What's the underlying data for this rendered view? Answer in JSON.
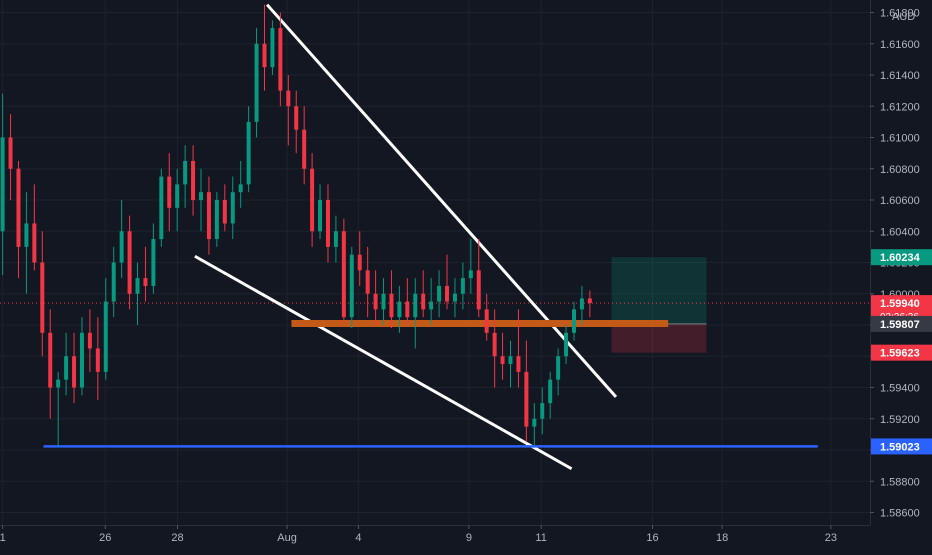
{
  "chart_data": {
    "type": "candlestick",
    "currency_label": "AUD",
    "price_labels": [
      "1.61800",
      "1.61600",
      "1.61400",
      "1.61200",
      "1.61000",
      "1.60800",
      "1.60600",
      "1.60400",
      "1.60200",
      "1.60000",
      "1.59800",
      "1.59600",
      "1.59400",
      "1.59200",
      "1.59000",
      "1.58800",
      "1.58600"
    ],
    "date_labels": [
      "1",
      "26",
      "28",
      "Aug",
      "4",
      "9",
      "11",
      "16",
      "18",
      "23"
    ],
    "ylim": [
      1.5852,
      1.6188
    ],
    "badges": [
      {
        "text": "1.60234",
        "color": "#089981"
      },
      {
        "text": "1.59940",
        "sub": "03:36:36",
        "color": "#f23645"
      },
      {
        "text": "1.59807",
        "color": "#363a45"
      },
      {
        "text": "1.59623",
        "color": "#f23645"
      },
      {
        "text": "1.59023",
        "color": "#2962ff"
      }
    ],
    "candles": [
      [
        1.604,
        1.6128,
        1.6012,
        1.61
      ],
      [
        1.61,
        1.6115,
        1.606,
        1.608
      ],
      [
        1.608,
        1.6085,
        1.601,
        1.603
      ],
      [
        1.603,
        1.6065,
        1.6,
        1.6045
      ],
      [
        1.6045,
        1.607,
        1.6015,
        1.602
      ],
      [
        1.602,
        1.604,
        1.596,
        1.5975
      ],
      [
        1.5975,
        1.599,
        1.592,
        1.594
      ],
      [
        1.594,
        1.595,
        1.5902,
        1.5945
      ],
      [
        1.5945,
        1.5975,
        1.5935,
        1.596
      ],
      [
        1.596,
        1.5975,
        1.593,
        1.594
      ],
      [
        1.594,
        1.5985,
        1.5935,
        1.5975
      ],
      [
        1.5975,
        1.599,
        1.595,
        1.5965
      ],
      [
        1.5965,
        1.5985,
        1.5932,
        1.595
      ],
      [
        1.595,
        1.601,
        1.5945,
        1.5995
      ],
      [
        1.5995,
        1.603,
        1.5985,
        1.602
      ],
      [
        1.602,
        1.606,
        1.601,
        1.604
      ],
      [
        1.604,
        1.605,
        1.599,
        1.6
      ],
      [
        1.6,
        1.602,
        1.598,
        1.601
      ],
      [
        1.601,
        1.603,
        1.5995,
        1.6005
      ],
      [
        1.6005,
        1.6045,
        1.6,
        1.6035
      ],
      [
        1.6035,
        1.608,
        1.603,
        1.6075
      ],
      [
        1.6075,
        1.609,
        1.604,
        1.6055
      ],
      [
        1.6055,
        1.608,
        1.604,
        1.607
      ],
      [
        1.607,
        1.6095,
        1.6055,
        1.6085
      ],
      [
        1.6085,
        1.6095,
        1.605,
        1.606
      ],
      [
        1.606,
        1.608,
        1.604,
        1.6065
      ],
      [
        1.6065,
        1.6075,
        1.6025,
        1.6035
      ],
      [
        1.6035,
        1.6065,
        1.603,
        1.606
      ],
      [
        1.606,
        1.607,
        1.604,
        1.6045
      ],
      [
        1.6045,
        1.6075,
        1.6035,
        1.6065
      ],
      [
        1.6065,
        1.6085,
        1.6055,
        1.607
      ],
      [
        1.607,
        1.612,
        1.6065,
        1.611
      ],
      [
        1.611,
        1.617,
        1.61,
        1.616
      ],
      [
        1.616,
        1.6185,
        1.613,
        1.6145
      ],
      [
        1.6145,
        1.6175,
        1.614,
        1.617
      ],
      [
        1.617,
        1.618,
        1.612,
        1.613
      ],
      [
        1.613,
        1.614,
        1.6095,
        1.612
      ],
      [
        1.612,
        1.613,
        1.609,
        1.6105
      ],
      [
        1.6105,
        1.612,
        1.607,
        1.608
      ],
      [
        1.608,
        1.609,
        1.603,
        1.604
      ],
      [
        1.604,
        1.607,
        1.6035,
        1.606
      ],
      [
        1.606,
        1.607,
        1.602,
        1.603
      ],
      [
        1.603,
        1.605,
        1.602,
        1.604
      ],
      [
        1.604,
        1.6048,
        1.598,
        1.5985
      ],
      [
        1.5985,
        1.603,
        1.5978,
        1.6025
      ],
      [
        1.6025,
        1.604,
        1.6005,
        1.6015
      ],
      [
        1.6015,
        1.603,
        1.5985,
        1.6
      ],
      [
        1.6,
        1.6015,
        1.598,
        1.599
      ],
      [
        1.599,
        1.601,
        1.598,
        1.6
      ],
      [
        1.6,
        1.6015,
        1.5978,
        1.5985
      ],
      [
        1.5985,
        1.6005,
        1.5975,
        1.5995
      ],
      [
        1.5995,
        1.601,
        1.598,
        1.5985
      ],
      [
        1.5985,
        1.601,
        1.5965,
        1.6
      ],
      [
        1.6,
        1.6015,
        1.5985,
        1.599
      ],
      [
        1.599,
        1.601,
        1.598,
        1.5995
      ],
      [
        1.5995,
        1.6015,
        1.5985,
        1.6005
      ],
      [
        1.6005,
        1.6025,
        1.599,
        1.5995
      ],
      [
        1.5995,
        1.601,
        1.5985,
        1.6
      ],
      [
        1.6,
        1.602,
        1.599,
        1.601
      ],
      [
        1.601,
        1.6035,
        1.6,
        1.6015
      ],
      [
        1.6015,
        1.6035,
        1.5985,
        1.599
      ],
      [
        1.599,
        1.6,
        1.597,
        1.5975
      ],
      [
        1.5975,
        1.599,
        1.594,
        1.596
      ],
      [
        1.596,
        1.5975,
        1.5945,
        1.5955
      ],
      [
        1.5955,
        1.597,
        1.594,
        1.596
      ],
      [
        1.596,
        1.599,
        1.594,
        1.595
      ],
      [
        1.595,
        1.597,
        1.5905,
        1.5915
      ],
      [
        1.5915,
        1.593,
        1.5903,
        1.592
      ],
      [
        1.592,
        1.594,
        1.591,
        1.593
      ],
      [
        1.593,
        1.595,
        1.592,
        1.5945
      ],
      [
        1.5945,
        1.5965,
        1.5935,
        1.596
      ],
      [
        1.596,
        1.598,
        1.5955,
        1.5975
      ],
      [
        1.5975,
        1.5995,
        1.597,
        1.599
      ],
      [
        1.599,
        1.6005,
        1.598,
        1.5997
      ],
      [
        1.5997,
        1.6002,
        1.5985,
        1.5994
      ]
    ],
    "trendlines": [
      {
        "name": "upper-trendline",
        "color": "#ffffff",
        "from": [
          0.307,
          1.6185
        ],
        "to": [
          0.708,
          1.5934
        ]
      },
      {
        "name": "lower-trendline",
        "color": "#ffffff",
        "from": [
          0.224,
          1.6024
        ],
        "to": [
          0.657,
          1.5888
        ]
      },
      {
        "name": "resistance-line",
        "color": "#c35a18",
        "from": [
          0.335,
          1.5981
        ],
        "to": [
          0.768,
          1.5981
        ]
      },
      {
        "name": "support-line",
        "color": "#2962ff",
        "from": [
          0.05,
          1.59023
        ],
        "to": [
          0.94,
          1.59023
        ]
      }
    ],
    "position": {
      "start": 0.703,
      "end": 0.812,
      "entry": 1.59807,
      "target": 1.60234,
      "stop": 1.59623
    }
  }
}
